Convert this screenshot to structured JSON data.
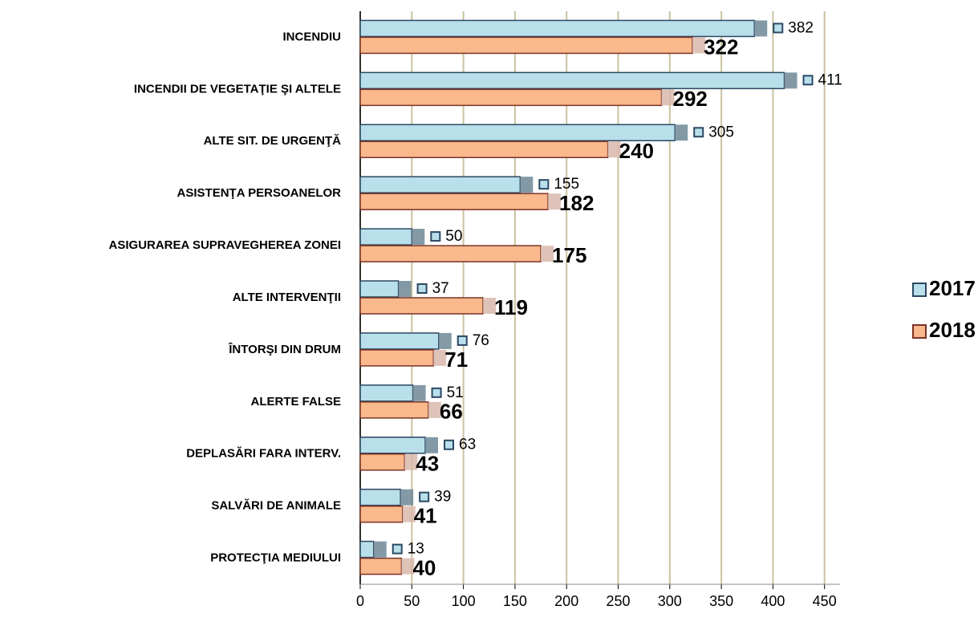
{
  "chart_data": {
    "type": "barh",
    "categories": [
      "INCENDIU",
      "INCENDII DE VEGETAŢIE ŞI ALTELE",
      "ALTE SIT. DE URGENŢĂ",
      "ASISTENŢA PERSOANELOR",
      "ASIGURAREA SUPRAVEGHEREA ZONEI",
      "ALTE INTERVENŢII",
      "ÎNTORŞI DIN DRUM",
      "ALERTE FALSE",
      "DEPLASĂRI FARA INTERV.",
      "SALVĂRI DE ANIMALE",
      "PROTECŢIA MEDIULUI"
    ],
    "series": [
      {
        "name": "2017",
        "color": "#b9e0ea",
        "values": [
          382,
          411,
          305,
          155,
          50,
          37,
          76,
          51,
          63,
          39,
          13
        ]
      },
      {
        "name": "2018",
        "color": "#f9b98c",
        "values": [
          322,
          292,
          240,
          182,
          175,
          119,
          71,
          66,
          43,
          41,
          40
        ]
      }
    ],
    "xlim": [
      0,
      465
    ],
    "xticks": [
      0,
      50,
      100,
      150,
      200,
      250,
      300,
      350,
      400,
      450
    ],
    "grid": true,
    "legend": "right"
  }
}
